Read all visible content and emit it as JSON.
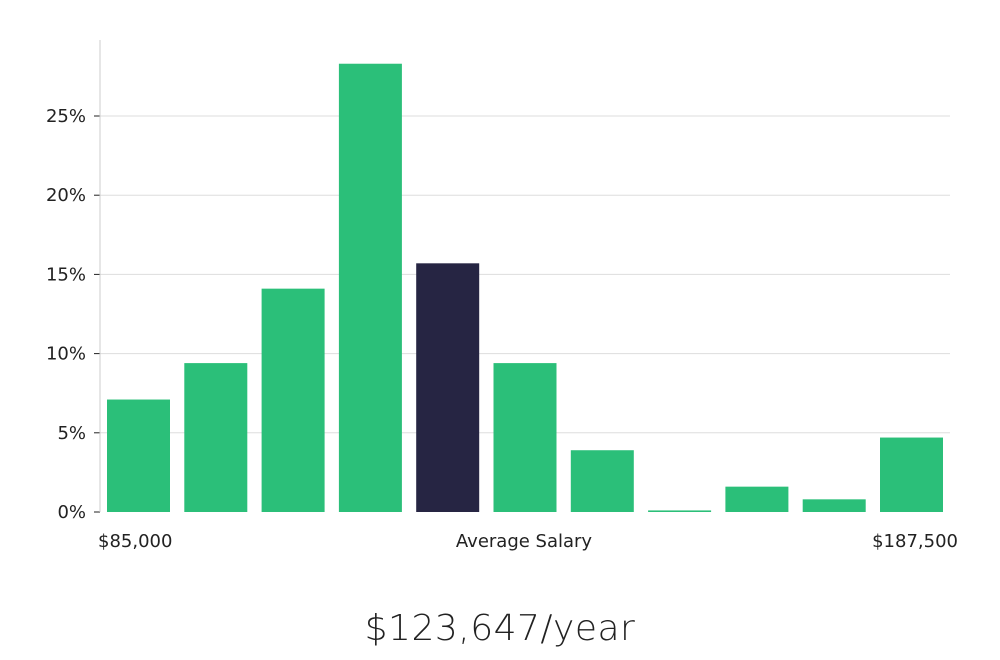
{
  "chart_data": {
    "type": "bar",
    "title": "",
    "xlabel": "Average Salary",
    "ylabel": "",
    "x_min_label": "$85,000",
    "x_max_label": "$187,500",
    "ylim": [
      0,
      30
    ],
    "yticks": [
      0,
      5,
      10,
      15,
      20,
      25
    ],
    "ytick_labels": [
      "0%",
      "5%",
      "10%",
      "15%",
      "20%",
      "25%"
    ],
    "values": [
      7.1,
      9.4,
      14.1,
      28.3,
      15.7,
      9.4,
      3.9,
      0.1,
      1.6,
      0.8,
      4.7
    ],
    "highlight_index": 4,
    "colors": {
      "bar": "#2bbf79",
      "highlight": "#262543",
      "grid": "#dddddd",
      "axis": "#cccccc"
    }
  },
  "salary_display": "$123,647/year"
}
